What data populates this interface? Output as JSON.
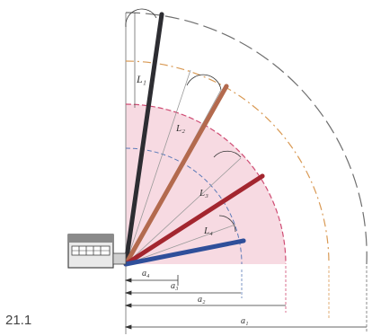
{
  "figure_number": "21.1",
  "boom_labels": {
    "longest": "L₁",
    "second": "L₂",
    "third": "L₃",
    "shortest": "L₄"
  },
  "radius_labels": {
    "a1": "a₁",
    "a2": "a₂",
    "a3": "a₃",
    "a4": "a₄"
  },
  "colors": {
    "longest_boom": "#2d2d32",
    "second_boom": "#b36a4e",
    "third_boom": "#a3262f",
    "shortest_boom": "#2f4f9a",
    "pink_zone": "#f6d3dd",
    "outer_arc": "#6f6f6f",
    "orange_arc": "#d99a55",
    "pink_arc": "#cf4d74",
    "blue_arc": "#5b7ab8"
  }
}
